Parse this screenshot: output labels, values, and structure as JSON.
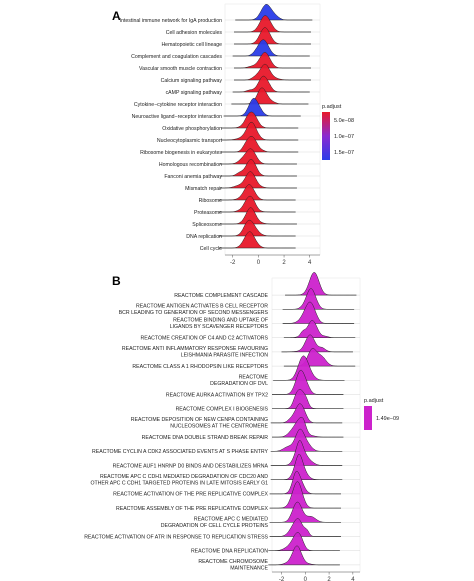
{
  "chart_data": [
    {
      "type": "ridgeline",
      "panel_label": "A",
      "xticks": [
        -2,
        0,
        2,
        4
      ],
      "xlim": [
        -2.6,
        4.8
      ],
      "legend": {
        "title": "p.adjust",
        "labels": [
          "5.0e−08",
          "1.0e−07",
          "1.5e−07"
        ],
        "colors": [
          "#e8182a",
          "#8a2ad0",
          "#2a3ce8"
        ]
      },
      "terms": [
        {
          "label": "Intestinal immune network for IgA production",
          "peak": 0.6,
          "color": "#2a3ce8"
        },
        {
          "label": "Cell adhesion molecules",
          "peak": 0.5,
          "color": "#e8182a"
        },
        {
          "label": "Hematopoietic cell lineage",
          "peak": 0.5,
          "color": "#e8182a"
        },
        {
          "label": "Complement and coagulation cascades",
          "peak": 0.4,
          "color": "#2a3ce8"
        },
        {
          "label": "Vascular smooth muscle contraction",
          "peak": 0.5,
          "color": "#e8182a"
        },
        {
          "label": "Calcium signaling pathway",
          "peak": 0.5,
          "color": "#e8182a"
        },
        {
          "label": "cAMP signaling pathway",
          "peak": 0.4,
          "color": "#e8182a"
        },
        {
          "label": "Cytokine−cytokine receptor interaction",
          "peak": 0.3,
          "color": "#e8182a"
        },
        {
          "label": "Neuroactive ligand−receptor interaction",
          "peak": -0.3,
          "color": "#2a3ce8"
        },
        {
          "label": "Oxidative phosphorylation",
          "peak": -0.5,
          "color": "#e8182a"
        },
        {
          "label": "Nucleocytoplasmic transport",
          "peak": -0.5,
          "color": "#e8182a"
        },
        {
          "label": "Ribosome biogenesis in eukaryotes",
          "peak": -0.5,
          "color": "#e8182a"
        },
        {
          "label": "Homologous recombination",
          "peak": -0.6,
          "color": "#e8182a"
        },
        {
          "label": "Fanconi anemia pathway",
          "peak": -0.6,
          "color": "#e8182a"
        },
        {
          "label": "Mismatch repair",
          "peak": -0.6,
          "color": "#e8182a"
        },
        {
          "label": "Ribosome",
          "peak": -0.7,
          "color": "#e8182a"
        },
        {
          "label": "Proteasome",
          "peak": -0.7,
          "color": "#e8182a"
        },
        {
          "label": "Spliceosome",
          "peak": -0.6,
          "color": "#e8182a"
        },
        {
          "label": "DNA replication",
          "peak": -0.7,
          "color": "#e8182a"
        },
        {
          "label": "Cell cycle",
          "peak": -0.7,
          "color": "#e8182a"
        }
      ]
    },
    {
      "type": "ridgeline",
      "panel_label": "B",
      "xticks": [
        -2,
        0,
        2,
        4
      ],
      "xlim": [
        -2.8,
        4.6
      ],
      "legend": {
        "title": "p.adjust",
        "labels": [
          "1.49e−09"
        ],
        "colors": [
          "#cc22cc"
        ]
      },
      "terms": [
        {
          "label": [
            "REACTOME COMPLEMENT CASCADE"
          ],
          "peak": 0.7
        },
        {
          "label": [
            "REACTOME ANTIGEN ACTIVATES B CELL RECEPTOR",
            "BCR LEADING TO GENERATION OF SECOND MESSENGERS"
          ],
          "peak": 0.5
        },
        {
          "label": [
            "REACTOME BINDING AND UPTAKE OF",
            "LIGANDS BY SCAVENGER RECEPTORS"
          ],
          "peak": 0.5
        },
        {
          "label": [
            "REACTOME CREATION OF C4 AND C2 ACTIVATORS"
          ],
          "peak": 0.6
        },
        {
          "label": [
            "REACTOME ANTI INFLAMMATORY RESPONSE FAVOURING",
            "LEISHMANIA PARASITE INFECTION"
          ],
          "peak": 0.4
        },
        {
          "label": [
            "REACTOME CLASS A 1 RHODOPSIN LIKE RECEPTORS"
          ],
          "peak": 0.6
        },
        {
          "label": [
            "REACTOME",
            "DEGRADATION OF DVL"
          ],
          "peak": -0.3
        },
        {
          "label": [
            "REACTOME AURKA ACTIVATION BY TPX2"
          ],
          "peak": -0.4
        },
        {
          "label": [
            "REACTOME COMPLEX I BIOGENESIS"
          ],
          "peak": -0.4
        },
        {
          "label": [
            "REACTOME DEPOSITION OF NEW CENPA CONTAINING",
            "NUCLEOSOMES AT THE CENTROMERE"
          ],
          "peak": -0.5
        },
        {
          "label": [
            "REACTOME DNA DOUBLE STRAND BREAK REPAIR"
          ],
          "peak": -0.4
        },
        {
          "label": [
            "REACTOME CYCLIN A CDK2 ASSOCIATED EVENTS AT S PHASE ENTRY"
          ],
          "peak": -0.5
        },
        {
          "label": [
            "REACTOME AUF1 HNRNP D0 BINDS AND DESTABILIZES MRNA"
          ],
          "peak": -0.5
        },
        {
          "label": [
            "REACTOME APC C CDH1 MEDIATED DEGRADATION OF CDC20 AND",
            "OTHER APC C CDH1 TARGETED PROTEINS IN LATE MITOSIS EARLY G1"
          ],
          "peak": -0.5
        },
        {
          "label": [
            "REACTOME ACTIVATION OF THE PRE REPLICATIVE COMPLEX"
          ],
          "peak": -0.6
        },
        {
          "label": [
            "REACTOME ASSEMBLY OF THE PRE REPLICATIVE COMPLEX"
          ],
          "peak": -0.6
        },
        {
          "label": [
            "REACTOME APC C MEDIATED",
            "DEGRADATION OF CELL CYCLE PROTEINS"
          ],
          "peak": -0.6
        },
        {
          "label": [
            "REACTOME ACTIVATION OF ATR IN RESPONSE TO REPLICATION STRESS"
          ],
          "peak": -0.6
        },
        {
          "label": [
            "REACTOME DNA REPLICATION"
          ],
          "peak": -0.7
        },
        {
          "label": [
            "REACTOME CHROMOSOME",
            "MAINTENANCE"
          ],
          "peak": -0.7
        }
      ]
    }
  ]
}
